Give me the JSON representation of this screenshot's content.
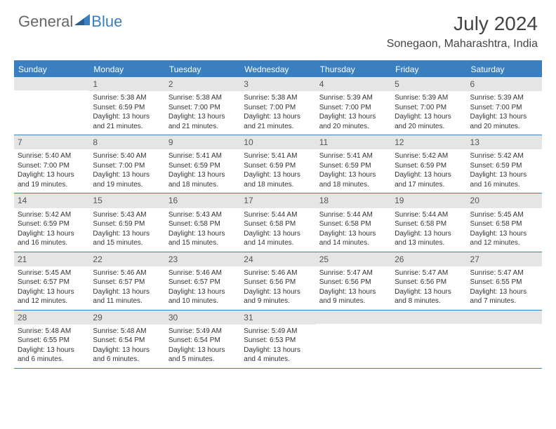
{
  "logo": {
    "text1": "General",
    "text2": "Blue"
  },
  "title": "July 2024",
  "location": "Sonegaon, Maharashtra, India",
  "colors": {
    "accent": "#3a7fbf",
    "header_bg": "#3a7fbf",
    "header_text": "#ffffff",
    "daynum_bg": "#e5e5e5",
    "text": "#333333",
    "background": "#ffffff"
  },
  "day_headers": [
    "Sunday",
    "Monday",
    "Tuesday",
    "Wednesday",
    "Thursday",
    "Friday",
    "Saturday"
  ],
  "weeks": [
    [
      {
        "num": "",
        "sunrise": "",
        "sunset": "",
        "daylight": ""
      },
      {
        "num": "1",
        "sunrise": "Sunrise: 5:38 AM",
        "sunset": "Sunset: 6:59 PM",
        "daylight": "Daylight: 13 hours and 21 minutes."
      },
      {
        "num": "2",
        "sunrise": "Sunrise: 5:38 AM",
        "sunset": "Sunset: 7:00 PM",
        "daylight": "Daylight: 13 hours and 21 minutes."
      },
      {
        "num": "3",
        "sunrise": "Sunrise: 5:38 AM",
        "sunset": "Sunset: 7:00 PM",
        "daylight": "Daylight: 13 hours and 21 minutes."
      },
      {
        "num": "4",
        "sunrise": "Sunrise: 5:39 AM",
        "sunset": "Sunset: 7:00 PM",
        "daylight": "Daylight: 13 hours and 20 minutes."
      },
      {
        "num": "5",
        "sunrise": "Sunrise: 5:39 AM",
        "sunset": "Sunset: 7:00 PM",
        "daylight": "Daylight: 13 hours and 20 minutes."
      },
      {
        "num": "6",
        "sunrise": "Sunrise: 5:39 AM",
        "sunset": "Sunset: 7:00 PM",
        "daylight": "Daylight: 13 hours and 20 minutes."
      }
    ],
    [
      {
        "num": "7",
        "sunrise": "Sunrise: 5:40 AM",
        "sunset": "Sunset: 7:00 PM",
        "daylight": "Daylight: 13 hours and 19 minutes."
      },
      {
        "num": "8",
        "sunrise": "Sunrise: 5:40 AM",
        "sunset": "Sunset: 7:00 PM",
        "daylight": "Daylight: 13 hours and 19 minutes."
      },
      {
        "num": "9",
        "sunrise": "Sunrise: 5:41 AM",
        "sunset": "Sunset: 6:59 PM",
        "daylight": "Daylight: 13 hours and 18 minutes."
      },
      {
        "num": "10",
        "sunrise": "Sunrise: 5:41 AM",
        "sunset": "Sunset: 6:59 PM",
        "daylight": "Daylight: 13 hours and 18 minutes."
      },
      {
        "num": "11",
        "sunrise": "Sunrise: 5:41 AM",
        "sunset": "Sunset: 6:59 PM",
        "daylight": "Daylight: 13 hours and 18 minutes."
      },
      {
        "num": "12",
        "sunrise": "Sunrise: 5:42 AM",
        "sunset": "Sunset: 6:59 PM",
        "daylight": "Daylight: 13 hours and 17 minutes."
      },
      {
        "num": "13",
        "sunrise": "Sunrise: 5:42 AM",
        "sunset": "Sunset: 6:59 PM",
        "daylight": "Daylight: 13 hours and 16 minutes."
      }
    ],
    [
      {
        "num": "14",
        "sunrise": "Sunrise: 5:42 AM",
        "sunset": "Sunset: 6:59 PM",
        "daylight": "Daylight: 13 hours and 16 minutes."
      },
      {
        "num": "15",
        "sunrise": "Sunrise: 5:43 AM",
        "sunset": "Sunset: 6:59 PM",
        "daylight": "Daylight: 13 hours and 15 minutes."
      },
      {
        "num": "16",
        "sunrise": "Sunrise: 5:43 AM",
        "sunset": "Sunset: 6:58 PM",
        "daylight": "Daylight: 13 hours and 15 minutes."
      },
      {
        "num": "17",
        "sunrise": "Sunrise: 5:44 AM",
        "sunset": "Sunset: 6:58 PM",
        "daylight": "Daylight: 13 hours and 14 minutes."
      },
      {
        "num": "18",
        "sunrise": "Sunrise: 5:44 AM",
        "sunset": "Sunset: 6:58 PM",
        "daylight": "Daylight: 13 hours and 14 minutes."
      },
      {
        "num": "19",
        "sunrise": "Sunrise: 5:44 AM",
        "sunset": "Sunset: 6:58 PM",
        "daylight": "Daylight: 13 hours and 13 minutes."
      },
      {
        "num": "20",
        "sunrise": "Sunrise: 5:45 AM",
        "sunset": "Sunset: 6:58 PM",
        "daylight": "Daylight: 13 hours and 12 minutes."
      }
    ],
    [
      {
        "num": "21",
        "sunrise": "Sunrise: 5:45 AM",
        "sunset": "Sunset: 6:57 PM",
        "daylight": "Daylight: 13 hours and 12 minutes."
      },
      {
        "num": "22",
        "sunrise": "Sunrise: 5:46 AM",
        "sunset": "Sunset: 6:57 PM",
        "daylight": "Daylight: 13 hours and 11 minutes."
      },
      {
        "num": "23",
        "sunrise": "Sunrise: 5:46 AM",
        "sunset": "Sunset: 6:57 PM",
        "daylight": "Daylight: 13 hours and 10 minutes."
      },
      {
        "num": "24",
        "sunrise": "Sunrise: 5:46 AM",
        "sunset": "Sunset: 6:56 PM",
        "daylight": "Daylight: 13 hours and 9 minutes."
      },
      {
        "num": "25",
        "sunrise": "Sunrise: 5:47 AM",
        "sunset": "Sunset: 6:56 PM",
        "daylight": "Daylight: 13 hours and 9 minutes."
      },
      {
        "num": "26",
        "sunrise": "Sunrise: 5:47 AM",
        "sunset": "Sunset: 6:56 PM",
        "daylight": "Daylight: 13 hours and 8 minutes."
      },
      {
        "num": "27",
        "sunrise": "Sunrise: 5:47 AM",
        "sunset": "Sunset: 6:55 PM",
        "daylight": "Daylight: 13 hours and 7 minutes."
      }
    ],
    [
      {
        "num": "28",
        "sunrise": "Sunrise: 5:48 AM",
        "sunset": "Sunset: 6:55 PM",
        "daylight": "Daylight: 13 hours and 6 minutes."
      },
      {
        "num": "29",
        "sunrise": "Sunrise: 5:48 AM",
        "sunset": "Sunset: 6:54 PM",
        "daylight": "Daylight: 13 hours and 6 minutes."
      },
      {
        "num": "30",
        "sunrise": "Sunrise: 5:49 AM",
        "sunset": "Sunset: 6:54 PM",
        "daylight": "Daylight: 13 hours and 5 minutes."
      },
      {
        "num": "31",
        "sunrise": "Sunrise: 5:49 AM",
        "sunset": "Sunset: 6:53 PM",
        "daylight": "Daylight: 13 hours and 4 minutes."
      },
      {
        "num": "",
        "sunrise": "",
        "sunset": "",
        "daylight": ""
      },
      {
        "num": "",
        "sunrise": "",
        "sunset": "",
        "daylight": ""
      },
      {
        "num": "",
        "sunrise": "",
        "sunset": "",
        "daylight": ""
      }
    ]
  ]
}
